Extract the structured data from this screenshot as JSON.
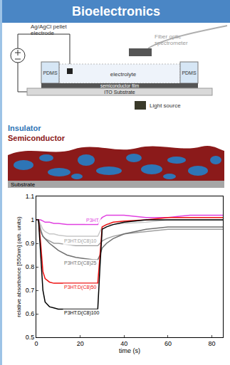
{
  "header": {
    "title": "Bioelectronics"
  },
  "diagram": {
    "electrode_label": "Ag/AgCl pellet electrode",
    "spectrometer_label": "Fiber optic spectrometer",
    "pdms_labels": [
      "PDMS",
      "PDMS"
    ],
    "electrolyte_label": "electrolyte",
    "film_label": "semiconductor film",
    "substrate_label": "ITO Substrate",
    "light_label": "Light source"
  },
  "morphology": {
    "insulator_label": "Insulator",
    "semiconductor_label": "Semiconductor",
    "substrate_label": "Substrate"
  },
  "chart_data": {
    "type": "line",
    "x_label": "time (s)",
    "y_label": "relative absorbance [550nm] (arb. units)",
    "x": [
      0,
      1,
      2,
      3,
      4,
      6,
      8,
      10,
      14,
      18,
      22,
      26,
      28,
      29,
      30,
      32,
      35,
      40,
      50,
      60,
      70,
      80,
      85
    ],
    "series": [
      {
        "color": "#e040e0",
        "values": [
          1,
          1,
          1,
          0.995,
          0.99,
          0.99,
          0.985,
          0.985,
          0.98,
          0.98,
          0.98,
          0.98,
          0.98,
          1.0,
          1.01,
          1.02,
          1.02,
          1.02,
          1.01,
          1.01,
          1.02,
          1.02,
          1.02
        ]
      },
      {
        "color": "#c8c8c8",
        "values": [
          1,
          1,
          0.98,
          0.96,
          0.95,
          0.94,
          0.94,
          0.935,
          0.93,
          0.93,
          0.93,
          0.93,
          0.93,
          0.95,
          0.97,
          0.98,
          0.98,
          0.985,
          0.99,
          1.0,
          1.0,
          1.0,
          1.0
        ]
      },
      {
        "color": "#a0a0a0",
        "values": [
          1,
          1,
          0.96,
          0.93,
          0.92,
          0.91,
          0.9,
          0.9,
          0.895,
          0.89,
          0.89,
          0.89,
          0.89,
          0.9,
          0.91,
          0.92,
          0.93,
          0.94,
          0.95,
          0.96,
          0.96,
          0.96,
          0.96
        ]
      },
      {
        "color": "#707070",
        "values": [
          1,
          1,
          0.95,
          0.93,
          0.92,
          0.9,
          0.885,
          0.87,
          0.85,
          0.84,
          0.835,
          0.83,
          0.83,
          0.85,
          0.88,
          0.9,
          0.92,
          0.94,
          0.96,
          0.97,
          0.97,
          0.97,
          0.97
        ]
      },
      {
        "color": "#ee1111",
        "values": [
          1,
          1,
          0.9,
          0.78,
          0.75,
          0.735,
          0.73,
          0.73,
          0.73,
          0.73,
          0.73,
          0.73,
          0.73,
          0.85,
          0.97,
          0.98,
          0.99,
          0.995,
          1.0,
          1.01,
          1.01,
          1.01,
          1.01
        ]
      },
      {
        "color": "#000000",
        "values": [
          1,
          1,
          0.85,
          0.7,
          0.65,
          0.63,
          0.625,
          0.62,
          0.62,
          0.62,
          0.62,
          0.62,
          0.62,
          0.8,
          0.96,
          0.97,
          0.98,
          0.99,
          1.0,
          1.0,
          1.0,
          1.0,
          1.0
        ]
      }
    ],
    "annotations": [
      {
        "text": "P3HT",
        "x": 22,
        "y": 1.0,
        "color": "#e040e0"
      },
      {
        "text": "P3HT:D(C8)10",
        "x": 12,
        "y": 0.91,
        "color": "#a0a0a0"
      },
      {
        "text": "P3HT:D(C8)25",
        "x": 12,
        "y": 0.815,
        "color": "#707070"
      },
      {
        "text": "P3HT:D(C8)50",
        "x": 12,
        "y": 0.712,
        "color": "#ee1111"
      },
      {
        "text": "P3HT:D(C8)100",
        "x": 12,
        "y": 0.603,
        "color": "#000000"
      }
    ],
    "xlim": [
      0,
      85
    ],
    "xticks": [
      0,
      20,
      40,
      60,
      80
    ],
    "ylim": [
      0.5,
      1.1
    ],
    "yticks": [
      0.5,
      0.6,
      0.7,
      0.8,
      0.9,
      1,
      1.1
    ],
    "grid": false
  }
}
